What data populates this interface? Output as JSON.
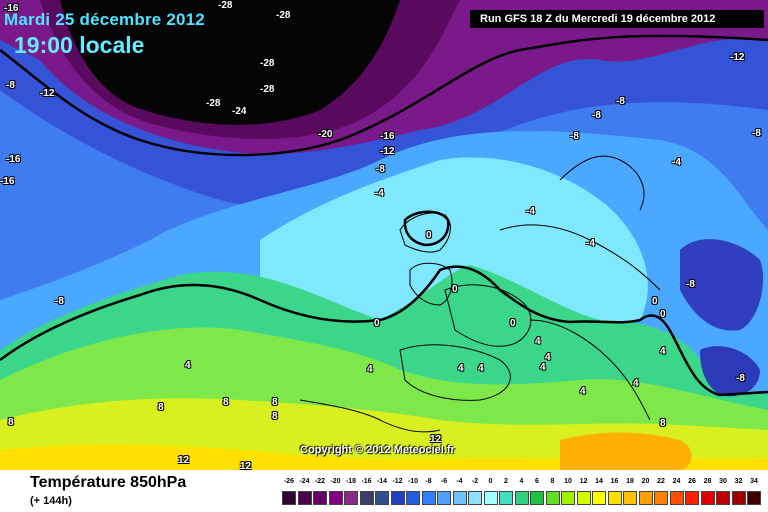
{
  "header": {
    "date": "Mardi 25 décembre 2012",
    "time": "19:00 locale",
    "run": "Run GFS 18 Z du Mercredi 19 décembre 2012"
  },
  "copyright": "Copyright © 2012 Meteociel.fr",
  "footer": {
    "title": "Température 850hPa",
    "subtitle": "(+ 144h)"
  },
  "contour_labels": [
    {
      "text": "-16"
    },
    {
      "text": "-8"
    },
    {
      "text": "-12"
    },
    {
      "text": "-16"
    },
    {
      "text": "-16"
    },
    {
      "text": "-28"
    },
    {
      "text": "-28"
    },
    {
      "text": "-28"
    },
    {
      "text": "-28"
    },
    {
      "text": "-24"
    },
    {
      "text": "-28"
    },
    {
      "text": "-20"
    },
    {
      "text": "-16"
    },
    {
      "text": "-12"
    },
    {
      "text": "-8"
    },
    {
      "text": "-4"
    },
    {
      "text": "-12"
    },
    {
      "text": "-8"
    },
    {
      "text": "-8"
    },
    {
      "text": "-8"
    },
    {
      "text": "-4"
    },
    {
      "text": "-4"
    },
    {
      "text": "-8"
    },
    {
      "text": "-8"
    },
    {
      "text": "-8"
    },
    {
      "text": "-8"
    },
    {
      "text": "0"
    },
    {
      "text": "0"
    },
    {
      "text": "0"
    },
    {
      "text": "0"
    },
    {
      "text": "0"
    },
    {
      "text": "4"
    },
    {
      "text": "4"
    },
    {
      "text": "4"
    },
    {
      "text": "4"
    },
    {
      "text": "4"
    },
    {
      "text": "4"
    },
    {
      "text": "4"
    },
    {
      "text": "8"
    },
    {
      "text": "8"
    },
    {
      "text": "8"
    },
    {
      "text": "8"
    },
    {
      "text": "8"
    },
    {
      "text": "8"
    },
    {
      "text": "12"
    },
    {
      "text": "12"
    },
    {
      "text": "12"
    },
    {
      "text": "4"
    },
    {
      "text": "4"
    },
    {
      "text": "-4"
    },
    {
      "text": "4"
    },
    {
      "text": "0"
    }
  ],
  "legend": {
    "ticks": [
      "-26",
      "-24",
      "-22",
      "-20",
      "-18",
      "-16",
      "-14",
      "-12",
      "-10",
      "-8",
      "-6",
      "-4",
      "-2",
      "0",
      "2",
      "4",
      "6",
      "8",
      "10",
      "12",
      "14",
      "16",
      "18",
      "20",
      "22",
      "24",
      "26",
      "28",
      "30",
      "32",
      "34"
    ],
    "colors": [
      "#330033",
      "#4d004d",
      "#660066",
      "#800080",
      "#8a2b8a",
      "#3d3d6b",
      "#2f4f8f",
      "#1f3fbf",
      "#1f5fdf",
      "#2f7fff",
      "#4fa0ff",
      "#6fc0ff",
      "#8fe0ff",
      "#a0ffff",
      "#40e0c0",
      "#30d080",
      "#20c040",
      "#60e020",
      "#a0f000",
      "#d0ff00",
      "#ffff00",
      "#ffe000",
      "#ffc000",
      "#ffa000",
      "#ff8000",
      "#ff5000",
      "#ff2000",
      "#e00000",
      "#c00000",
      "#a00000",
      "#400000"
    ]
  }
}
